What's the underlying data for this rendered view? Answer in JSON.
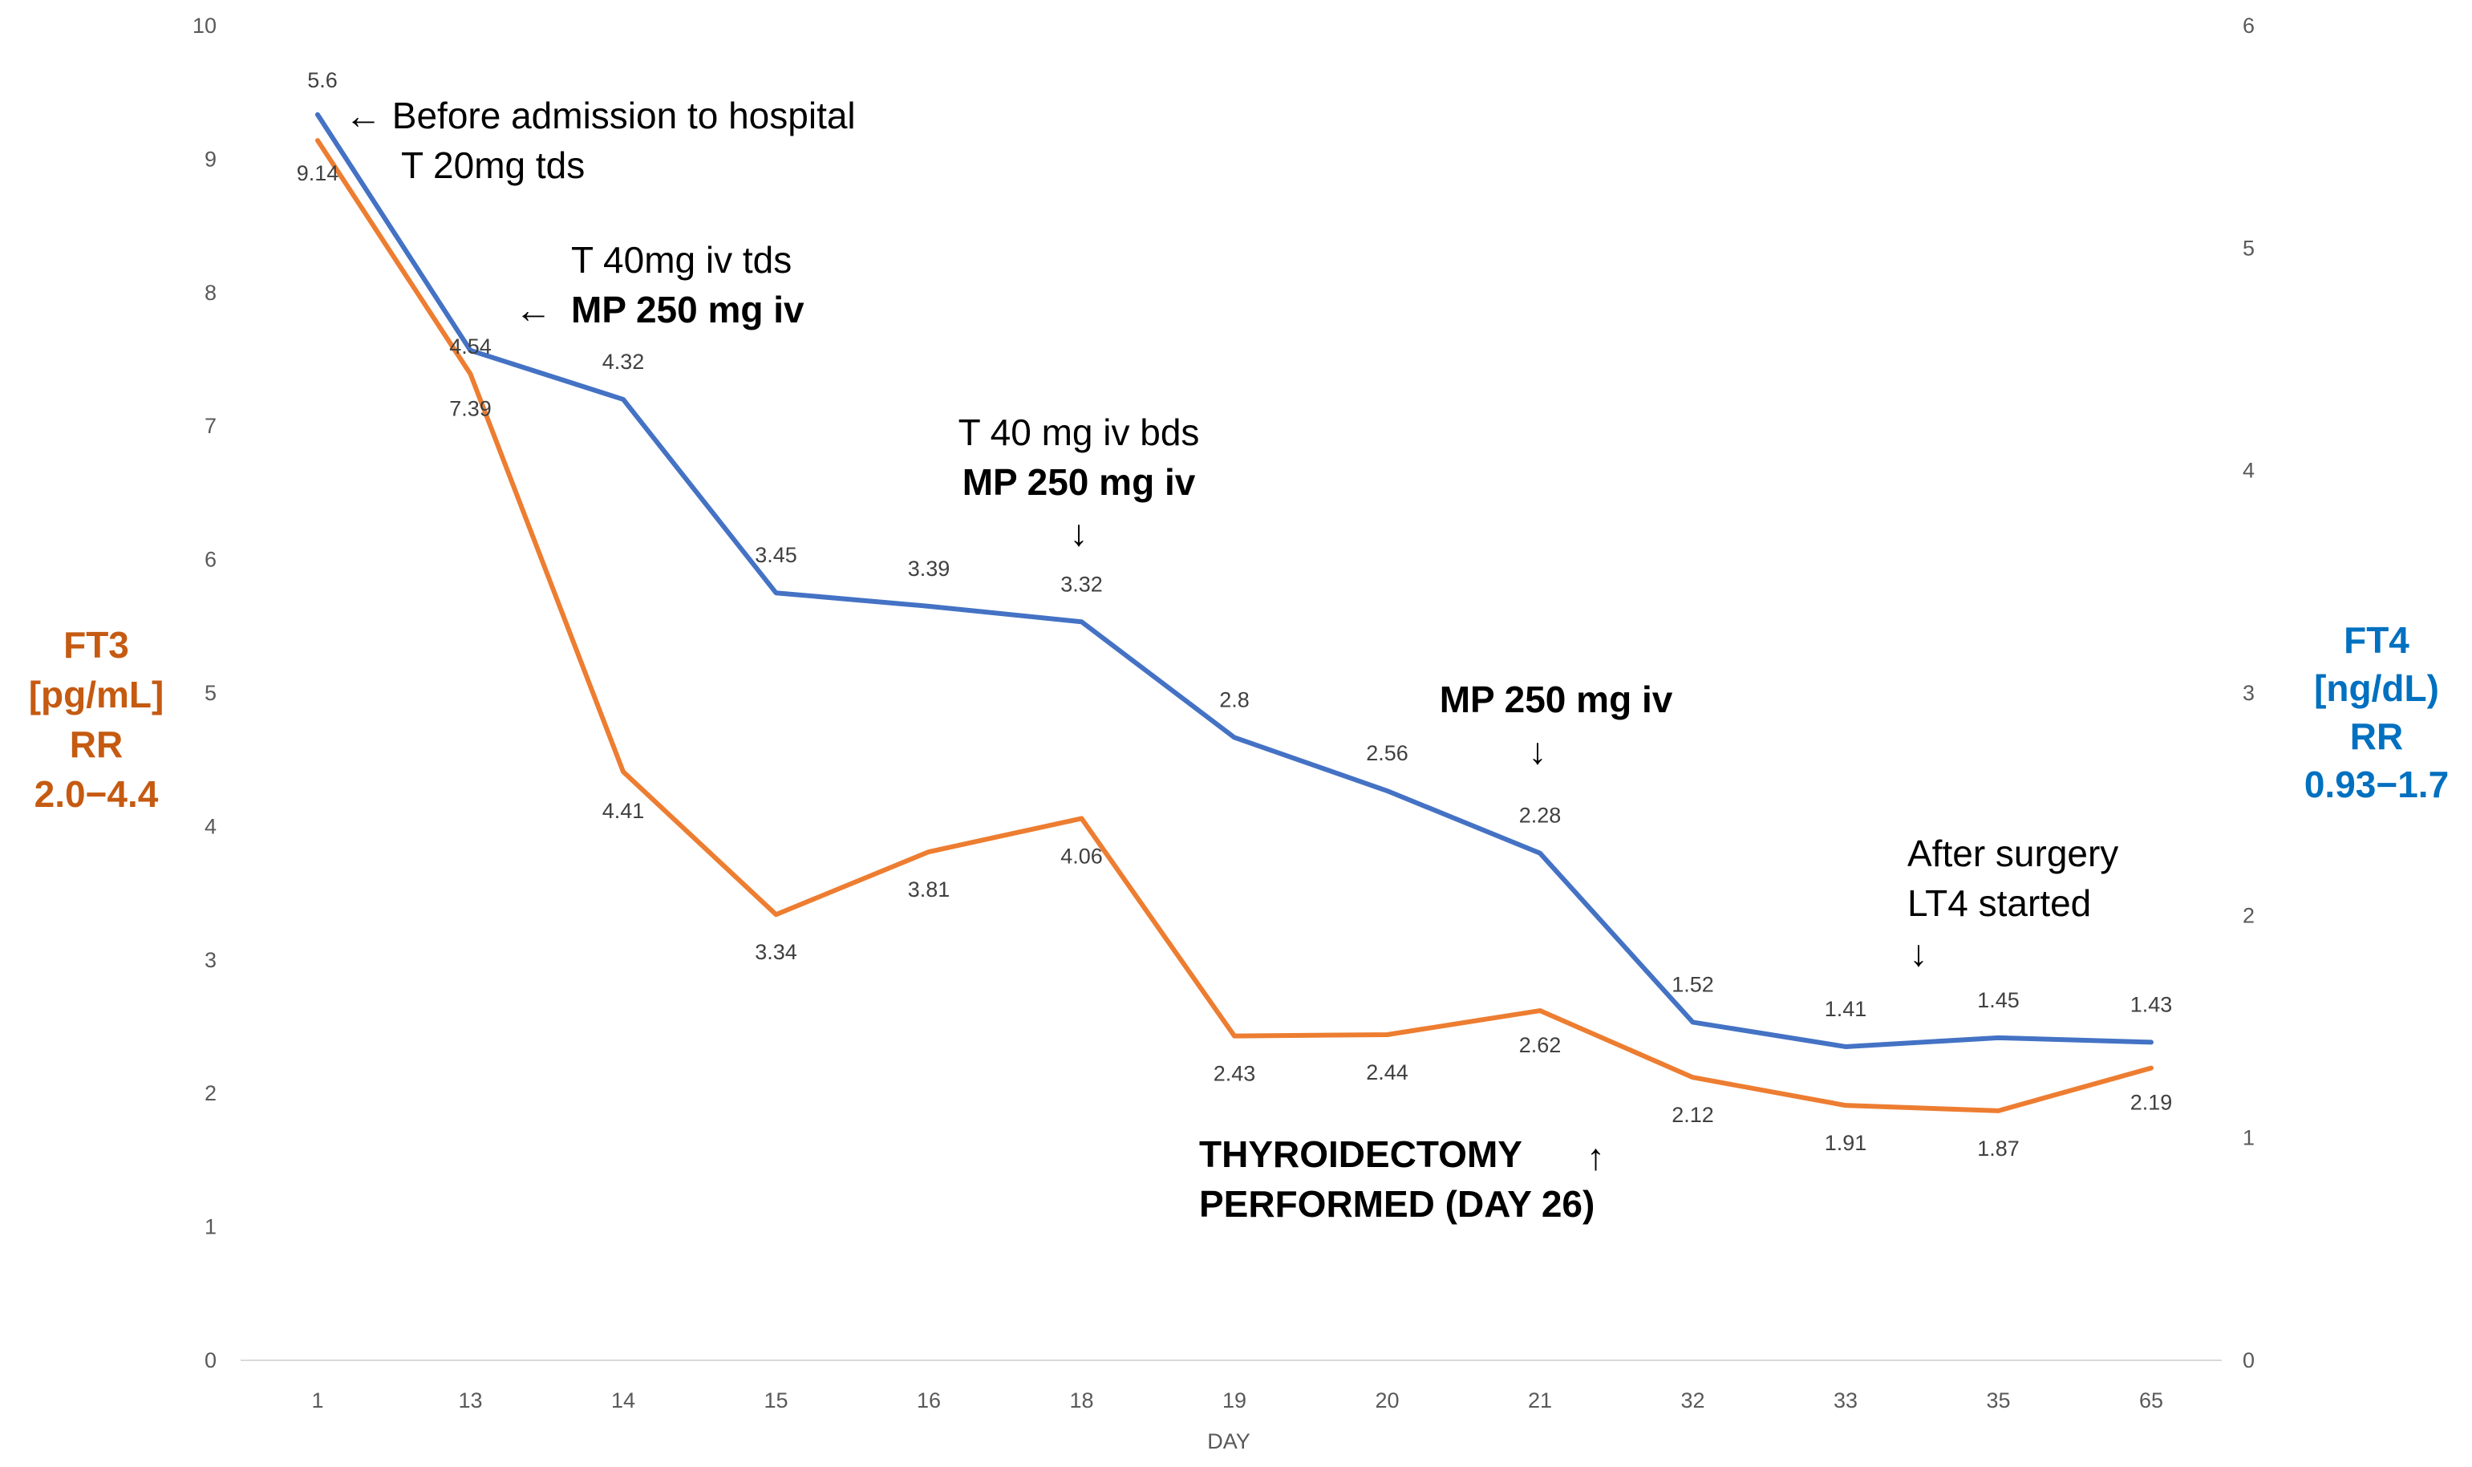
{
  "chart_data": {
    "type": "line",
    "categories": [
      "1",
      "13",
      "14",
      "15",
      "16",
      "18",
      "19",
      "20",
      "21",
      "32",
      "33",
      "35",
      "65"
    ],
    "xlabel": "DAY",
    "left_axis": {
      "label_lines": [
        "FT3",
        "[pg/mL]",
        "RR",
        "2.0−4.4"
      ],
      "ylim": [
        0,
        10
      ],
      "ticks": [
        "0",
        "1",
        "2",
        "3",
        "4",
        "5",
        "6",
        "7",
        "8",
        "9",
        "10"
      ],
      "color": "#C55A11"
    },
    "right_axis": {
      "label_lines": [
        "FT4",
        "[ng/dL)",
        "RR",
        "0.93−1.7"
      ],
      "ylim": [
        0,
        6
      ],
      "ticks": [
        "0",
        "1",
        "2",
        "3",
        "4",
        "5",
        "6"
      ],
      "color": "#0070C0"
    },
    "series": [
      {
        "name": "FT3",
        "axis": "left",
        "color": "#ED7D31",
        "values": [
          9.14,
          7.39,
          4.41,
          3.34,
          3.81,
          4.06,
          2.43,
          2.44,
          2.62,
          2.12,
          1.91,
          1.87,
          2.19
        ],
        "labels": [
          "9.14",
          "7.39",
          "4.41",
          "3.34",
          "3.81",
          "4.06",
          "2.43",
          "2.44",
          "2.62",
          "2.12",
          "1.91",
          "1.87",
          "2.19"
        ]
      },
      {
        "name": "FT4",
        "axis": "right",
        "color": "#4472C4",
        "values": [
          5.6,
          4.54,
          4.32,
          3.45,
          3.39,
          3.32,
          2.8,
          2.56,
          2.28,
          1.52,
          1.41,
          1.45,
          1.43
        ],
        "labels": [
          "5.6",
          "4.54",
          "4.32",
          "3.45",
          "3.39",
          "3.32",
          "2.8",
          "2.56",
          "2.28",
          "1.52",
          "1.41",
          "1.45",
          "1.43"
        ]
      }
    ],
    "annotations": {
      "admission": [
        "← Before admission to hospital",
        "T 20mg tds"
      ],
      "day13": [
        "T 40mg  iv tds",
        "MP 250 mg iv"
      ],
      "day13_arrow": "←",
      "day18": [
        "T 40 mg  iv bds",
        "MP 250 mg iv"
      ],
      "day18_arrow": "↓",
      "day21": "MP 250 mg iv",
      "day21_arrow": "↓",
      "surgery_line1": "THYROIDECTOMY",
      "surgery_arrow": "↑",
      "surgery_line2": "PERFORMED (DAY 26)",
      "after_surgery": [
        "After surgery",
        "LT4  started"
      ],
      "after_surgery_arrow": "↓"
    }
  }
}
